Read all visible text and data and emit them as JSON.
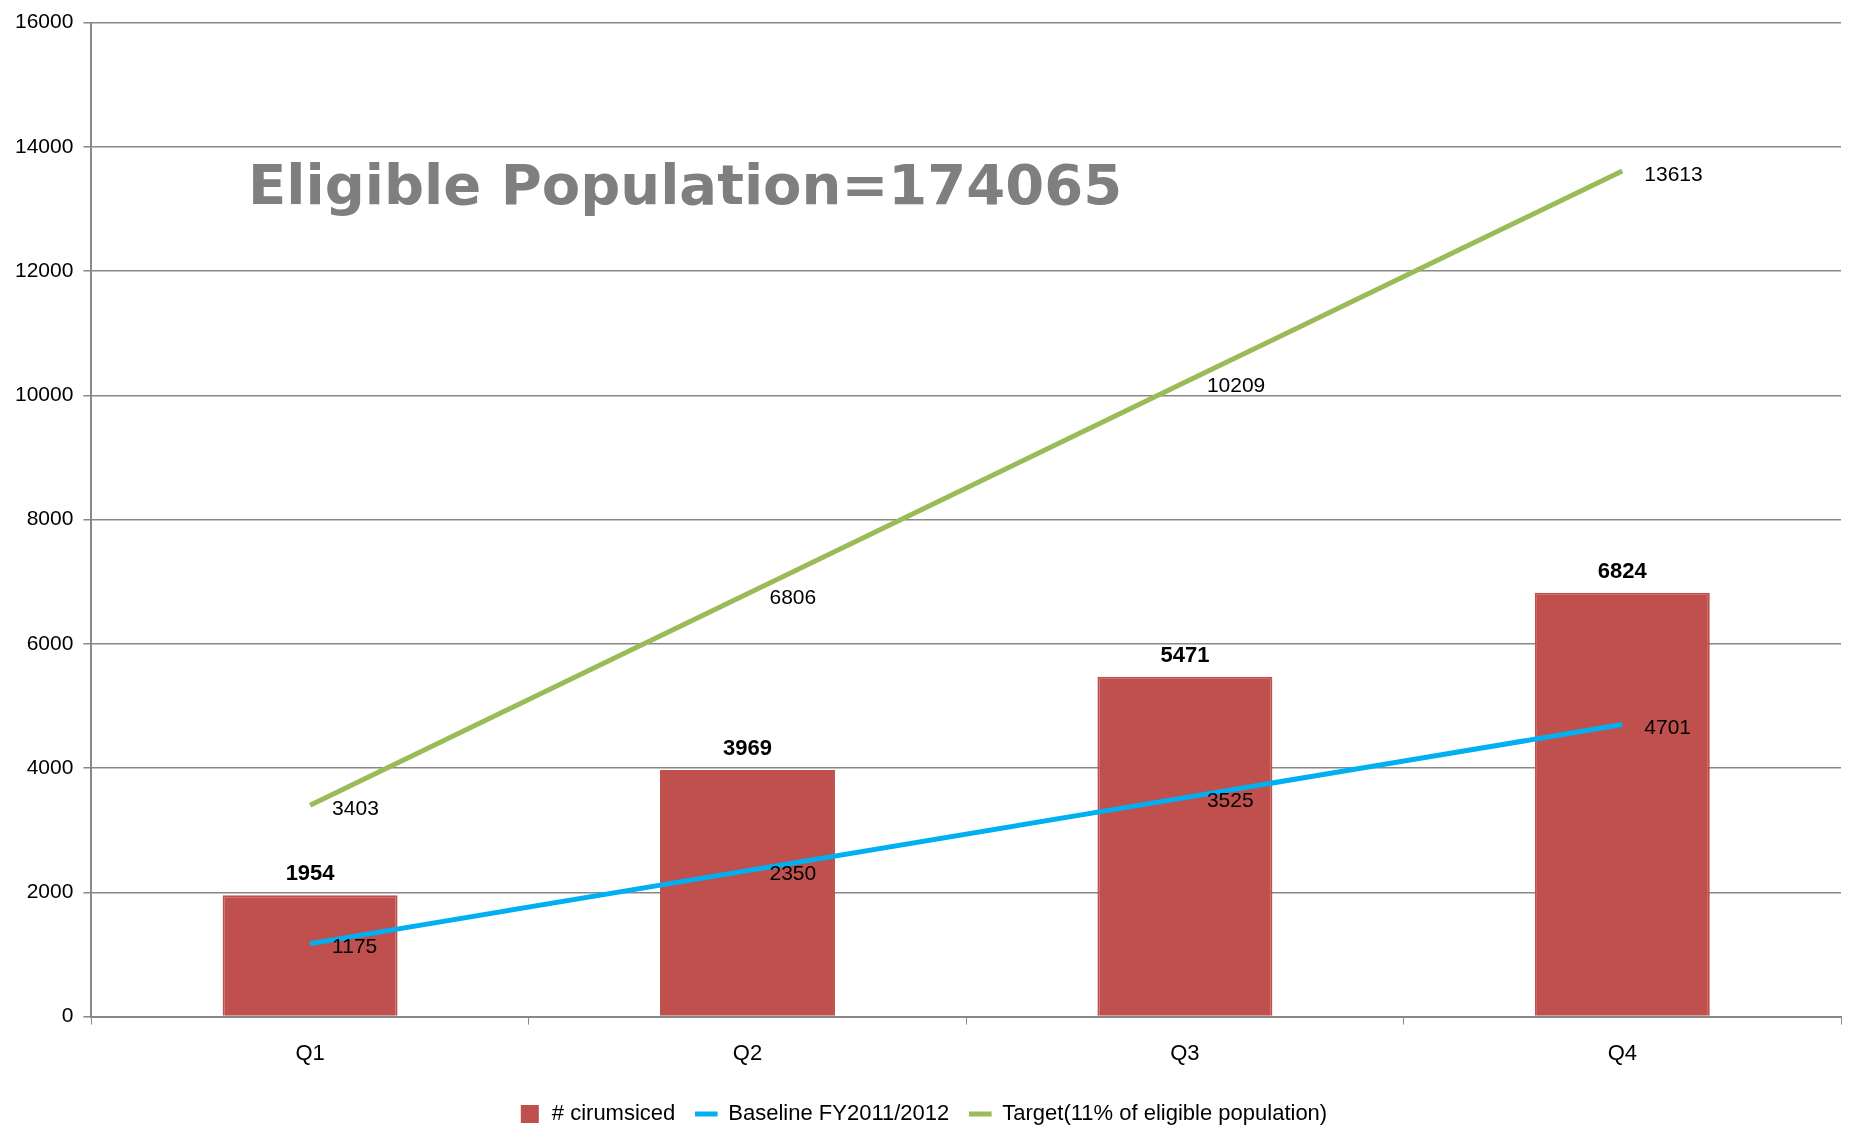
{
  "chart_data": {
    "type": "bar",
    "categories": [
      "Q1",
      "Q2",
      "Q3",
      "Q4"
    ],
    "series": [
      {
        "name": "# cirumsiced",
        "color": "#c0504d",
        "values": [
          1954,
          3969,
          5471,
          6824
        ]
      },
      {
        "name": "Baseline FY2011/2012",
        "type": "line",
        "color": "#00b0f0",
        "values": [
          1175,
          2350,
          3525,
          4701
        ]
      },
      {
        "name": "Target(11% of eligible population)",
        "type": "line",
        "color": "#9bbb59",
        "values": [
          3403,
          6806,
          10209,
          13613
        ]
      }
    ],
    "ylim": [
      0,
      16000
    ],
    "yticks": [
      0,
      2000,
      4000,
      6000,
      8000,
      10000,
      12000,
      14000,
      16000
    ],
    "grid": "y",
    "legend": "bottom",
    "marker": "none",
    "data_labels": true,
    "annotations": [
      "Eligible Population=174065"
    ]
  }
}
